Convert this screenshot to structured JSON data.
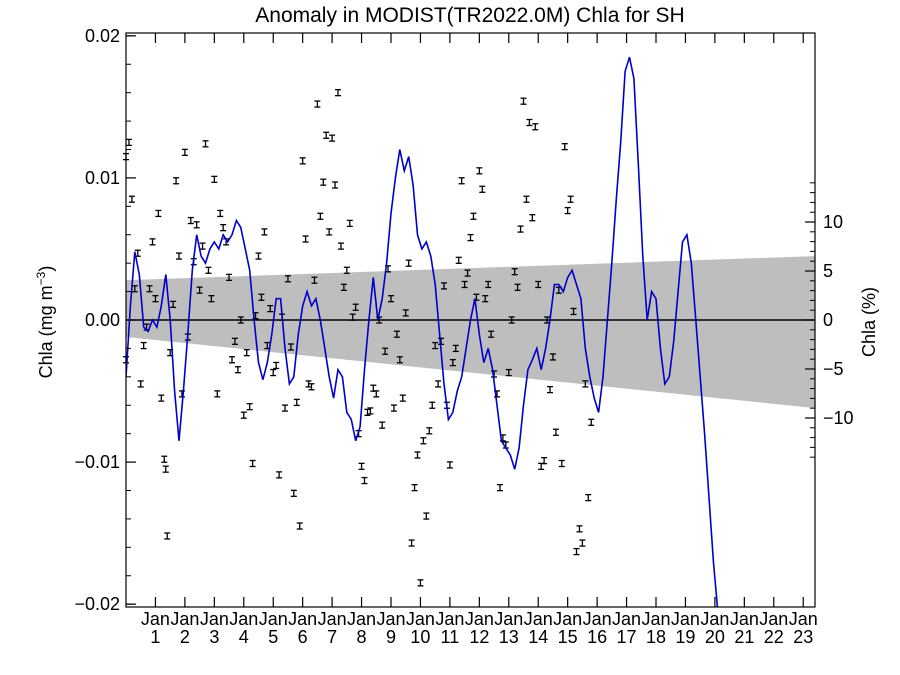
{
  "chart_data": {
    "type": "line",
    "title": "Anomaly in MODIST(TR2022.0M) Chla for SH",
    "ylabel_left": "Chla (mg m",
    "ylabel_left_sup": "−3",
    "ylabel_left_close": ")",
    "ylabel_right": "Chla (%)",
    "x_range": [
      0.0,
      23.4
    ],
    "ylim": [
      -0.0202,
      0.0202
    ],
    "yticks_left": [
      -0.02,
      -0.01,
      0.0,
      0.01,
      0.02
    ],
    "yticks_left_labels": [
      "−0.02",
      "−0.01",
      "0.00",
      "0.01",
      "0.02"
    ],
    "yticks_right": [
      -10,
      -5,
      0,
      5,
      10
    ],
    "yticks_right_labels": [
      "−10",
      "−5",
      "0",
      "5",
      "10"
    ],
    "right_scale_percent_per_unit": 1450,
    "x_tick_top_label": "Jan",
    "x_tick_numbers": [
      "1",
      "2",
      "3",
      "4",
      "5",
      "6",
      "7",
      "8",
      "9",
      "10",
      "11",
      "12",
      "13",
      "14",
      "15",
      "16",
      "17",
      "18",
      "19",
      "20",
      "21",
      "22",
      "23"
    ],
    "shading": {
      "color": "#bebebe",
      "upper": [
        [
          0.0,
          0.0028
        ],
        [
          23.4,
          0.0045
        ]
      ],
      "lower": [
        [
          0.0,
          -0.0012
        ],
        [
          23.4,
          -0.0062
        ]
      ]
    },
    "zero_line": 0.0,
    "series": [
      {
        "color": "#0000cc",
        "points": [
          [
            0.0,
            -0.004
          ],
          [
            0.15,
            0.001
          ],
          [
            0.3,
            0.0048
          ],
          [
            0.45,
            0.0032
          ],
          [
            0.6,
            -0.0005
          ],
          [
            0.75,
            -0.0008
          ],
          [
            0.9,
            0.0
          ],
          [
            1.05,
            -0.0005
          ],
          [
            1.2,
            0.001
          ],
          [
            1.35,
            0.0032
          ],
          [
            1.5,
            0.0
          ],
          [
            1.65,
            -0.005
          ],
          [
            1.8,
            -0.0085
          ],
          [
            1.95,
            -0.005
          ],
          [
            2.1,
            -0.001
          ],
          [
            2.25,
            0.0035
          ],
          [
            2.4,
            0.006
          ],
          [
            2.55,
            0.0045
          ],
          [
            2.7,
            0.004
          ],
          [
            2.85,
            0.005
          ],
          [
            3.0,
            0.0055
          ],
          [
            3.15,
            0.005
          ],
          [
            3.3,
            0.006
          ],
          [
            3.45,
            0.0055
          ],
          [
            3.6,
            0.006
          ],
          [
            3.75,
            0.007
          ],
          [
            3.9,
            0.0065
          ],
          [
            4.05,
            0.005
          ],
          [
            4.2,
            0.0035
          ],
          [
            4.35,
            0.0
          ],
          [
            4.5,
            -0.003
          ],
          [
            4.65,
            -0.0042
          ],
          [
            4.8,
            -0.003
          ],
          [
            4.95,
            -0.001
          ],
          [
            5.1,
            0.0015
          ],
          [
            5.25,
            0.0015
          ],
          [
            5.4,
            -0.002
          ],
          [
            5.55,
            -0.0045
          ],
          [
            5.7,
            -0.004
          ],
          [
            5.85,
            -0.001
          ],
          [
            6.0,
            0.001
          ],
          [
            6.15,
            0.002
          ],
          [
            6.3,
            0.001
          ],
          [
            6.45,
            0.0015
          ],
          [
            6.6,
            0.0
          ],
          [
            6.75,
            -0.002
          ],
          [
            6.9,
            -0.004
          ],
          [
            7.05,
            -0.0055
          ],
          [
            7.2,
            -0.0035
          ],
          [
            7.35,
            -0.004
          ],
          [
            7.5,
            -0.0065
          ],
          [
            7.65,
            -0.007
          ],
          [
            7.8,
            -0.0085
          ],
          [
            7.95,
            -0.0075
          ],
          [
            8.1,
            -0.0035
          ],
          [
            8.25,
            0.0
          ],
          [
            8.4,
            0.003
          ],
          [
            8.55,
            0.0
          ],
          [
            8.7,
            0.0015
          ],
          [
            8.85,
            0.004
          ],
          [
            9.0,
            0.0075
          ],
          [
            9.15,
            0.01
          ],
          [
            9.3,
            0.012
          ],
          [
            9.45,
            0.0105
          ],
          [
            9.6,
            0.0115
          ],
          [
            9.75,
            0.0095
          ],
          [
            9.9,
            0.006
          ],
          [
            10.05,
            0.005
          ],
          [
            10.2,
            0.0055
          ],
          [
            10.35,
            0.0045
          ],
          [
            10.5,
            0.0025
          ],
          [
            10.65,
            -0.001
          ],
          [
            10.8,
            -0.0045
          ],
          [
            10.95,
            -0.007
          ],
          [
            11.1,
            -0.0065
          ],
          [
            11.25,
            -0.005
          ],
          [
            11.4,
            -0.004
          ],
          [
            11.55,
            -0.002
          ],
          [
            11.7,
            0.0
          ],
          [
            11.85,
            0.0015
          ],
          [
            12.0,
            -0.001
          ],
          [
            12.15,
            -0.003
          ],
          [
            12.3,
            -0.002
          ],
          [
            12.45,
            -0.0035
          ],
          [
            12.6,
            -0.006
          ],
          [
            12.75,
            -0.0085
          ],
          [
            12.9,
            -0.009
          ],
          [
            13.05,
            -0.0095
          ],
          [
            13.2,
            -0.0105
          ],
          [
            13.35,
            -0.009
          ],
          [
            13.5,
            -0.006
          ],
          [
            13.65,
            -0.0035
          ],
          [
            13.8,
            -0.0028
          ],
          [
            13.95,
            -0.002
          ],
          [
            14.1,
            -0.0035
          ],
          [
            14.25,
            -0.002
          ],
          [
            14.4,
            0.0
          ],
          [
            14.55,
            0.0025
          ],
          [
            14.7,
            0.0025
          ],
          [
            14.85,
            0.002
          ],
          [
            15.0,
            0.003
          ],
          [
            15.15,
            0.0035
          ],
          [
            15.3,
            0.0025
          ],
          [
            15.45,
            0.0015
          ],
          [
            15.6,
            -0.002
          ],
          [
            15.75,
            -0.004
          ],
          [
            15.9,
            -0.0055
          ],
          [
            16.05,
            -0.0065
          ],
          [
            16.2,
            -0.004
          ],
          [
            16.35,
            0.0
          ],
          [
            16.5,
            0.004
          ],
          [
            16.65,
            0.0085
          ],
          [
            16.8,
            0.0125
          ],
          [
            16.95,
            0.0175
          ],
          [
            17.1,
            0.0185
          ],
          [
            17.25,
            0.017
          ],
          [
            17.4,
            0.011
          ],
          [
            17.55,
            0.0045
          ],
          [
            17.7,
            0.0
          ],
          [
            17.85,
            0.002
          ],
          [
            18.0,
            0.0015
          ],
          [
            18.15,
            -0.002
          ],
          [
            18.3,
            -0.0045
          ],
          [
            18.45,
            -0.004
          ],
          [
            18.6,
            -0.0015
          ],
          [
            18.75,
            0.002
          ],
          [
            18.9,
            0.0055
          ],
          [
            19.05,
            0.006
          ],
          [
            19.2,
            0.004
          ],
          [
            19.35,
            0.0
          ],
          [
            19.5,
            -0.004
          ],
          [
            19.65,
            -0.008
          ],
          [
            19.8,
            -0.0125
          ],
          [
            19.95,
            -0.017
          ],
          [
            20.1,
            -0.0205
          ],
          [
            20.25,
            -0.0215
          ],
          [
            20.4,
            -0.0215
          ]
        ]
      }
    ],
    "errorbar_points": [
      [
        0.0,
        0.0115
      ],
      [
        0.0,
        -0.0028
      ],
      [
        0.1,
        0.0125
      ],
      [
        0.2,
        0.0085
      ],
      [
        0.3,
        0.0022
      ],
      [
        0.4,
        0.0047
      ],
      [
        0.5,
        -0.0045
      ],
      [
        0.6,
        -0.0018
      ],
      [
        0.7,
        -0.0005
      ],
      [
        0.8,
        0.0022
      ],
      [
        0.9,
        0.0055
      ],
      [
        1.0,
        0.0015
      ],
      [
        1.1,
        0.0075
      ],
      [
        1.2,
        -0.0055
      ],
      [
        1.3,
        -0.0098
      ],
      [
        1.35,
        -0.0105
      ],
      [
        1.4,
        -0.0152
      ],
      [
        1.5,
        -0.0023
      ],
      [
        1.6,
        0.0011
      ],
      [
        1.7,
        0.0098
      ],
      [
        1.8,
        0.0045
      ],
      [
        1.9,
        -0.0052
      ],
      [
        2.0,
        0.0118
      ],
      [
        2.1,
        -0.0012
      ],
      [
        2.2,
        0.007
      ],
      [
        2.3,
        0.0041
      ],
      [
        2.4,
        0.0067
      ],
      [
        2.5,
        0.0021
      ],
      [
        2.6,
        0.0052
      ],
      [
        2.7,
        0.0124
      ],
      [
        2.8,
        0.0035
      ],
      [
        2.9,
        0.0015
      ],
      [
        3.0,
        0.0099
      ],
      [
        3.1,
        -0.0052
      ],
      [
        3.2,
        0.0075
      ],
      [
        3.3,
        0.0065
      ],
      [
        3.4,
        0.0055
      ],
      [
        3.5,
        0.003
      ],
      [
        3.6,
        -0.0028
      ],
      [
        3.7,
        -0.0015
      ],
      [
        3.8,
        -0.0035
      ],
      [
        3.9,
        0.0
      ],
      [
        4.0,
        -0.0067
      ],
      [
        4.1,
        -0.0023
      ],
      [
        4.2,
        -0.0061
      ],
      [
        4.3,
        -0.0101
      ],
      [
        4.4,
        0.0003
      ],
      [
        4.5,
        0.0045
      ],
      [
        4.6,
        0.0016
      ],
      [
        4.7,
        0.0062
      ],
      [
        4.8,
        -0.0018
      ],
      [
        4.9,
        0.0008
      ],
      [
        5.0,
        -0.0037
      ],
      [
        5.1,
        -0.0032
      ],
      [
        5.2,
        -0.0109
      ],
      [
        5.3,
        0.0002
      ],
      [
        5.4,
        -0.0062
      ],
      [
        5.5,
        0.0029
      ],
      [
        5.6,
        -0.0019
      ],
      [
        5.7,
        -0.0122
      ],
      [
        5.8,
        -0.0058
      ],
      [
        5.9,
        -0.0145
      ],
      [
        6.0,
        0.0112
      ],
      [
        6.1,
        0.0057
      ],
      [
        6.2,
        -0.0045
      ],
      [
        6.3,
        -0.0047
      ],
      [
        6.4,
        0.0028
      ],
      [
        6.5,
        0.0152
      ],
      [
        6.6,
        0.0073
      ],
      [
        6.7,
        0.0097
      ],
      [
        6.8,
        0.013
      ],
      [
        6.9,
        0.0062
      ],
      [
        7.0,
        0.0128
      ],
      [
        7.1,
        0.0095
      ],
      [
        7.2,
        0.016
      ],
      [
        7.3,
        0.0052
      ],
      [
        7.4,
        0.0023
      ],
      [
        7.5,
        0.0035
      ],
      [
        7.6,
        0.0068
      ],
      [
        7.7,
        0.0002
      ],
      [
        7.8,
        0.0009
      ],
      [
        7.9,
        -0.008
      ],
      [
        8.0,
        -0.0103
      ],
      [
        8.1,
        -0.0113
      ],
      [
        8.2,
        -0.0065
      ],
      [
        8.3,
        -0.0064
      ],
      [
        8.4,
        -0.0048
      ],
      [
        8.5,
        -0.0052
      ],
      [
        8.6,
        0.0
      ],
      [
        8.7,
        -0.0074
      ],
      [
        8.8,
        -0.0022
      ],
      [
        8.9,
        0.0036
      ],
      [
        9.0,
        0.0015
      ],
      [
        9.1,
        -0.0062
      ],
      [
        9.2,
        -0.001
      ],
      [
        9.3,
        -0.0028
      ],
      [
        9.4,
        -0.0055
      ],
      [
        9.5,
        0.0005
      ],
      [
        9.6,
        0.004
      ],
      [
        9.7,
        -0.0157
      ],
      [
        9.8,
        -0.0118
      ],
      [
        9.9,
        -0.0095
      ],
      [
        10.0,
        -0.0185
      ],
      [
        10.1,
        -0.0085
      ],
      [
        10.2,
        -0.0138
      ],
      [
        10.3,
        -0.0078
      ],
      [
        10.4,
        -0.006
      ],
      [
        10.5,
        -0.0018
      ],
      [
        10.6,
        -0.0045
      ],
      [
        10.7,
        -0.0015
      ],
      [
        10.8,
        0.0024
      ],
      [
        10.9,
        -0.006
      ],
      [
        11.0,
        -0.0102
      ],
      [
        11.1,
        -0.003
      ],
      [
        11.2,
        -0.002
      ],
      [
        11.3,
        0.0042
      ],
      [
        11.4,
        0.0098
      ],
      [
        11.5,
        0.0025
      ],
      [
        11.6,
        0.0033
      ],
      [
        11.7,
        0.0058
      ],
      [
        11.8,
        0.0073
      ],
      [
        11.9,
        0.0016
      ],
      [
        12.0,
        0.0105
      ],
      [
        12.1,
        0.0092
      ],
      [
        12.2,
        0.0015
      ],
      [
        12.3,
        0.0025
      ],
      [
        12.4,
        -0.001
      ],
      [
        12.5,
        -0.0038
      ],
      [
        12.6,
        -0.0052
      ],
      [
        12.7,
        -0.0118
      ],
      [
        12.8,
        -0.0083
      ],
      [
        12.9,
        -0.0088
      ],
      [
        13.0,
        -0.0037
      ],
      [
        13.1,
        0.0
      ],
      [
        13.2,
        0.0034
      ],
      [
        13.3,
        0.0023
      ],
      [
        13.4,
        0.0064
      ],
      [
        13.5,
        0.0154
      ],
      [
        13.6,
        0.0085
      ],
      [
        13.7,
        0.0139
      ],
      [
        13.8,
        0.0072
      ],
      [
        13.9,
        0.0136
      ],
      [
        14.0,
        0.0025
      ],
      [
        14.1,
        -0.0103
      ],
      [
        14.2,
        -0.0099
      ],
      [
        14.3,
        0.0
      ],
      [
        14.4,
        -0.0049
      ],
      [
        14.5,
        -0.0026
      ],
      [
        14.6,
        -0.0079
      ],
      [
        14.7,
        0.0021
      ],
      [
        14.8,
        -0.0101
      ],
      [
        14.9,
        0.0122
      ],
      [
        15.0,
        0.0077
      ],
      [
        15.1,
        0.0085
      ],
      [
        15.2,
        0.0006
      ],
      [
        15.3,
        -0.0163
      ],
      [
        15.4,
        -0.0147
      ],
      [
        15.5,
        -0.0157
      ],
      [
        15.6,
        -0.0045
      ],
      [
        15.7,
        -0.0125
      ],
      [
        15.8,
        -0.0072
      ]
    ]
  }
}
